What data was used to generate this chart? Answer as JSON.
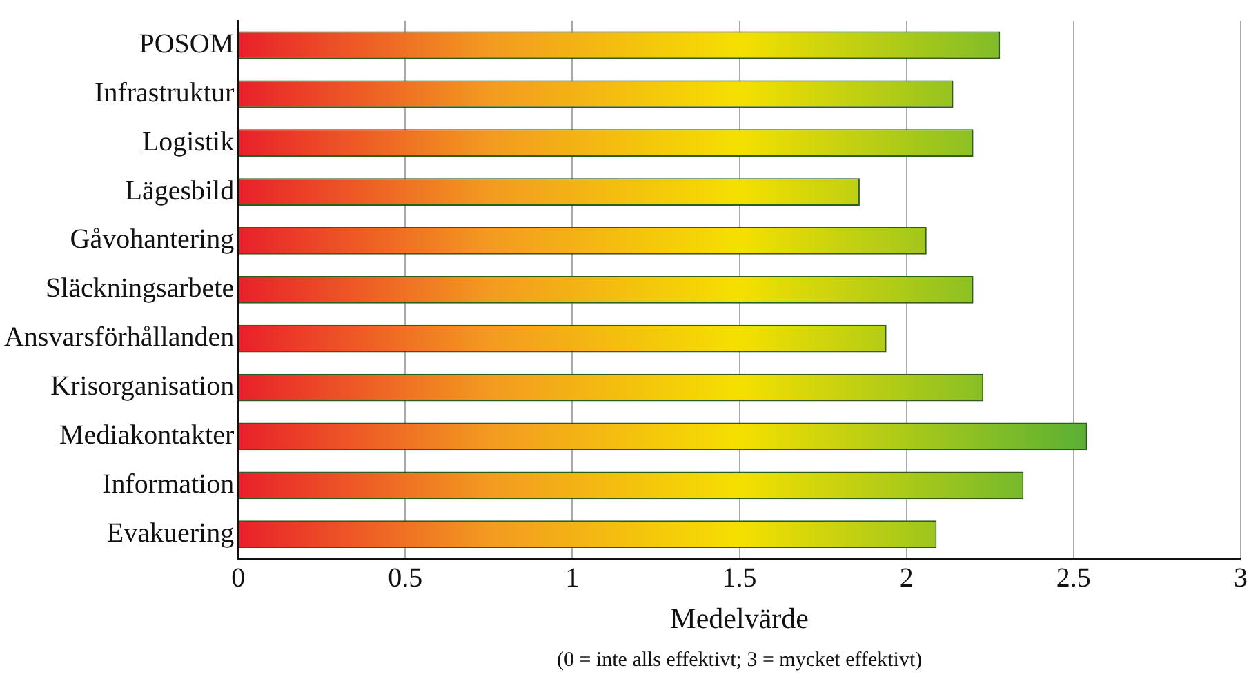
{
  "chart_data": {
    "type": "bar",
    "orientation": "horizontal",
    "categories": [
      "POSOM",
      "Infrastruktur",
      "Logistik",
      "Lägesbild",
      "Gåvohantering",
      "Släckningsarbete",
      "Ansvarsförhållanden",
      "Krisorganisation",
      "Mediakontakter",
      "Information",
      "Evakuering"
    ],
    "values": [
      2.28,
      2.14,
      2.2,
      1.86,
      2.06,
      2.2,
      1.94,
      2.23,
      2.54,
      2.35,
      2.09
    ],
    "color": "#f5e000",
    "xlim": [
      0,
      3
    ],
    "xticks": [
      0,
      0.5,
      1,
      1.5,
      2,
      2.5,
      3
    ],
    "xlabel": "Medelvärde",
    "annotations": [
      "(0 = inte alls effektivt; 3 = mycket effektivt)"
    ],
    "grid": "x",
    "legend": false
  }
}
